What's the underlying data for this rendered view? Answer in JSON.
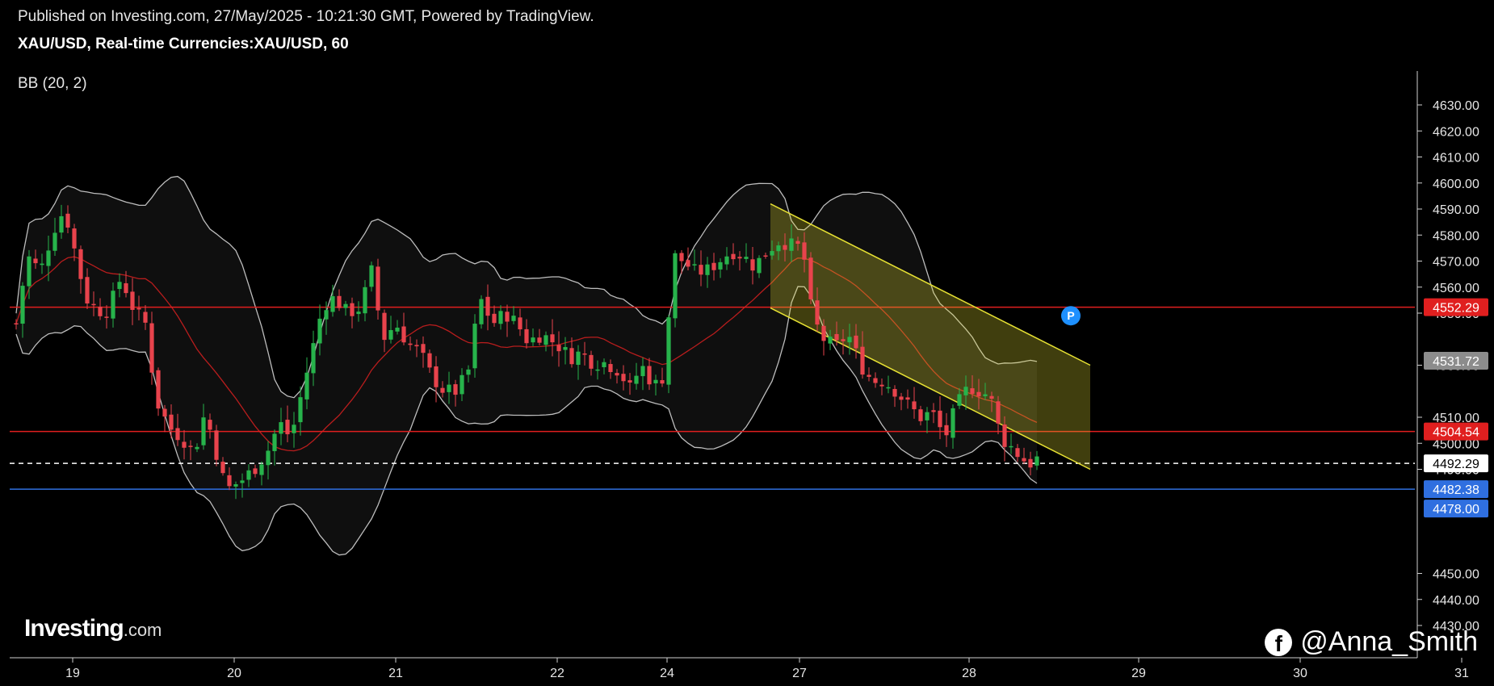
{
  "header": {
    "published": "Published on Investing.com, 27/May/2025 - 10:21:30 GMT, Powered by TradingView.",
    "symbol": "XAU/USD, Real-time Currencies:XAU/USD, 60",
    "indicator": "BB (20, 2)"
  },
  "brand": {
    "name": "Investing",
    "suffix": ".com"
  },
  "watermark": {
    "handle": "@Anna_Smith",
    "icon": "facebook-icon"
  },
  "colors": {
    "background": "#000000",
    "up": "#27b34b",
    "down": "#e8434c",
    "resistance": "#e01f1f",
    "support": "#2f6fe0",
    "channel": "#e6e033",
    "bb": "#bdbdbd"
  },
  "chart_data": {
    "type": "candlestick",
    "title": "XAU/USD, Real-time Currencies:XAU/USD, 60",
    "interval": "60",
    "xlabel": "",
    "ylabel": "",
    "ylim": [
      4415,
      4635
    ],
    "y_ticks": [
      "4630.00",
      "4620.00",
      "4610.00",
      "4600.00",
      "4590.00",
      "4580.00",
      "4570.00",
      "4560.00",
      "4550.00",
      "4530.00",
      "4510.00",
      "4500.00",
      "4490.00",
      "4450.00",
      "4440.00",
      "4430.00"
    ],
    "x_ticks": [
      {
        "label": "19",
        "day": 0
      },
      {
        "label": "20",
        "day": 1
      },
      {
        "label": "21",
        "day": 2
      },
      {
        "label": "22",
        "day": 3
      },
      {
        "label": "24",
        "day": 3.68
      },
      {
        "label": "27",
        "day": 4.5
      },
      {
        "label": "28",
        "day": 5.55
      },
      {
        "label": "29",
        "day": 6.6
      },
      {
        "label": "30",
        "day": 7.6
      },
      {
        "label": "31",
        "day": 8.6
      }
    ],
    "price_labels": [
      {
        "label": "4552.29",
        "value": 4552.29,
        "color": "#e01f1f"
      },
      {
        "label": "4531.72",
        "value": 4531.72,
        "color": "#8c8c8c"
      },
      {
        "label": "4504.54",
        "value": 4504.54,
        "color": "#e01f1f"
      },
      {
        "label": "4492.29",
        "value": 4492.29,
        "color": "#ffffff"
      },
      {
        "label": "4482.38",
        "value": 4482.38,
        "color": "#2f6fe0"
      },
      {
        "label": "4478.00",
        "value": 4478.0,
        "color": "#2f6fe0"
      }
    ],
    "horizontal_lines": [
      {
        "value": 4552.29,
        "style": "solid",
        "color": "#e01f1f"
      },
      {
        "value": 4504.54,
        "style": "solid",
        "color": "#e01f1f"
      },
      {
        "value": 4492.29,
        "style": "dashed",
        "color": "#ffffff"
      },
      {
        "value": 4482.38,
        "style": "solid",
        "color": "#2f6fe0"
      }
    ],
    "channel": {
      "upper": [
        [
          4.32,
          4592
        ],
        [
          6.3,
          4530
        ]
      ],
      "lower": [
        [
          4.32,
          4552
        ],
        [
          6.3,
          4490
        ]
      ]
    },
    "marker": {
      "label": "P",
      "day": 6.18,
      "value": 4549
    },
    "close_path": [
      [
        -0.35,
        4546
      ],
      [
        -0.28,
        4572
      ],
      [
        -0.2,
        4566
      ],
      [
        -0.12,
        4582
      ],
      [
        -0.05,
        4590
      ],
      [
        0.02,
        4572
      ],
      [
        0.08,
        4556
      ],
      [
        0.15,
        4551
      ],
      [
        0.22,
        4551
      ],
      [
        0.3,
        4564
      ],
      [
        0.38,
        4551
      ],
      [
        0.45,
        4546
      ],
      [
        0.52,
        4516
      ],
      [
        0.6,
        4506
      ],
      [
        0.68,
        4502
      ],
      [
        0.75,
        4496
      ],
      [
        0.82,
        4512
      ],
      [
        0.9,
        4494
      ],
      [
        0.95,
        4482
      ],
      [
        1.05,
        4486
      ],
      [
        1.12,
        4490
      ],
      [
        1.2,
        4496
      ],
      [
        1.28,
        4508
      ],
      [
        1.35,
        4502
      ],
      [
        1.42,
        4520
      ],
      [
        1.48,
        4535
      ],
      [
        1.55,
        4553
      ],
      [
        1.62,
        4556
      ],
      [
        1.7,
        4550
      ],
      [
        1.78,
        4552
      ],
      [
        1.85,
        4566
      ],
      [
        1.92,
        4540
      ],
      [
        2.0,
        4546
      ],
      [
        2.08,
        4538
      ],
      [
        2.15,
        4535
      ],
      [
        2.22,
        4526
      ],
      [
        2.3,
        4520
      ],
      [
        2.38,
        4520
      ],
      [
        2.45,
        4528
      ],
      [
        2.52,
        4556
      ],
      [
        2.6,
        4546
      ],
      [
        2.68,
        4550
      ],
      [
        2.75,
        4546
      ],
      [
        2.82,
        4539
      ],
      [
        2.9,
        4542
      ],
      [
        3.0,
        4538
      ],
      [
        3.08,
        4533
      ],
      [
        3.15,
        4535
      ],
      [
        3.22,
        4531
      ],
      [
        3.3,
        4531
      ],
      [
        3.38,
        4528
      ],
      [
        3.45,
        4521
      ],
      [
        3.52,
        4530
      ],
      [
        3.6,
        4522
      ],
      [
        3.66,
        4526
      ],
      [
        3.72,
        4572
      ],
      [
        3.78,
        4570
      ],
      [
        3.85,
        4566
      ],
      [
        3.92,
        4566
      ],
      [
        4.0,
        4570
      ],
      [
        4.08,
        4574
      ],
      [
        4.15,
        4572
      ],
      [
        4.22,
        4568
      ],
      [
        4.3,
        4574
      ],
      [
        4.38,
        4578
      ],
      [
        4.45,
        4576
      ],
      [
        4.52,
        4575
      ],
      [
        4.58,
        4548
      ],
      [
        4.65,
        4540
      ],
      [
        4.72,
        4537
      ],
      [
        4.8,
        4542
      ],
      [
        4.88,
        4530
      ],
      [
        4.95,
        4524
      ],
      [
        5.02,
        4524
      ],
      [
        5.1,
        4520
      ],
      [
        5.18,
        4514
      ],
      [
        5.25,
        4510
      ],
      [
        5.32,
        4512
      ],
      [
        5.4,
        4502
      ],
      [
        5.47,
        4514
      ],
      [
        5.55,
        4522
      ],
      [
        5.62,
        4520
      ],
      [
        5.68,
        4518
      ],
      [
        5.75,
        4502
      ],
      [
        5.82,
        4498
      ],
      [
        5.88,
        4494
      ],
      [
        5.94,
        4492
      ],
      [
        6.0,
        4496
      ]
    ]
  }
}
